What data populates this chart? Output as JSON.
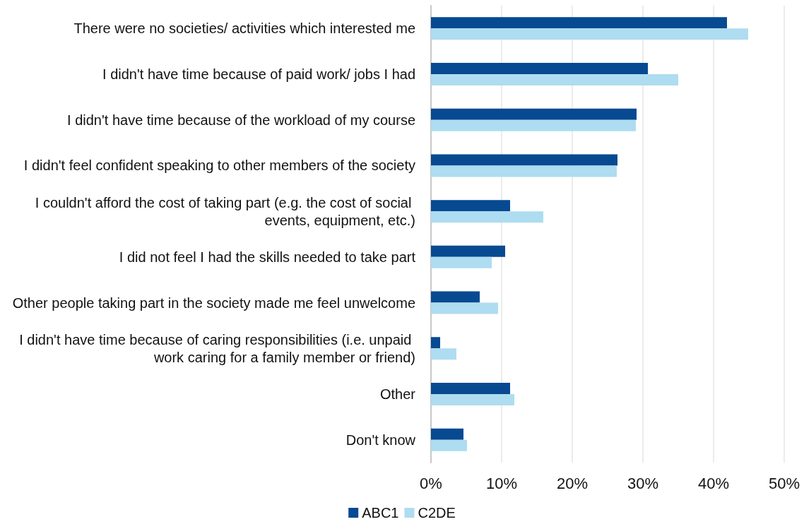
{
  "chart_data": {
    "type": "bar",
    "orientation": "horizontal",
    "categories": [
      "There were no societies/ activities which interested me",
      "I didn't have time because of paid work/ jobs I had",
      "I didn't have time because of the workload of my course",
      "I didn't feel confident speaking to other members of the society",
      "I couldn't afford the cost of taking part (e.g. the cost of social events, equipment, etc.)",
      "I did not feel I had the skills needed to take part",
      "Other people taking part in the society made me feel unwelcome",
      "I didn't have time because of caring responsibilities (i.e. unpaid work caring for a family member or friend)",
      "Other",
      "Don't know"
    ],
    "series": [
      {
        "name": "ABC1",
        "color": "#074a91",
        "values": [
          41.9,
          30.7,
          29.1,
          26.4,
          11.2,
          10.5,
          6.9,
          1.3,
          11.2,
          4.6
        ]
      },
      {
        "name": "C2DE",
        "color": "#aedcf0",
        "values": [
          44.9,
          35.0,
          29.0,
          26.3,
          15.9,
          8.6,
          9.5,
          3.6,
          11.8,
          5.1
        ]
      }
    ],
    "xlim": [
      0,
      50
    ],
    "xticks": [
      {
        "value": 0,
        "label": "0%"
      },
      {
        "value": 10,
        "label": "10%"
      },
      {
        "value": 20,
        "label": "20%"
      },
      {
        "value": 30,
        "label": "30%"
      },
      {
        "value": 40,
        "label": "40%"
      },
      {
        "value": 50,
        "label": "50%"
      }
    ],
    "grid": "x",
    "legend": "bottom"
  }
}
